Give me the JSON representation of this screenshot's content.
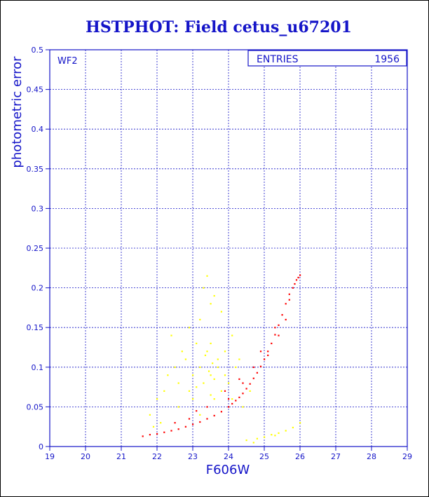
{
  "chart_data": {
    "type": "scatter",
    "title": "HSTPHOT: Field cetus_u67201",
    "xlabel": "F606W",
    "ylabel": "photometric error",
    "xlim": [
      19,
      29
    ],
    "ylim": [
      0,
      0.5
    ],
    "x_ticks": [
      "19",
      "20",
      "21",
      "22",
      "23",
      "24",
      "25",
      "26",
      "27",
      "28",
      "29"
    ],
    "y_ticks": [
      "0",
      "0.05",
      "0.1",
      "0.15",
      "0.2",
      "0.25",
      "0.3",
      "0.35",
      "0.4",
      "0.45",
      "0.5"
    ],
    "grid": true,
    "panel_label": "WF2",
    "stats": {
      "label": "ENTRIES",
      "value": "1956"
    },
    "series": [
      {
        "color": "#ff0000",
        "x": [
          21.6,
          21.8,
          22.0,
          22.2,
          22.4,
          22.6,
          22.8,
          23.0,
          23.2,
          23.4,
          23.6,
          23.8,
          24.0,
          24.1,
          24.2,
          24.3,
          24.4,
          24.5,
          24.6,
          24.7,
          24.8,
          24.9,
          25.0,
          25.1,
          25.2,
          25.3,
          25.4,
          25.5,
          25.6,
          25.7,
          25.8,
          25.85,
          25.9,
          25.95,
          26.0,
          22.5,
          23.1,
          23.9,
          24.3,
          24.7,
          25.1,
          25.4,
          25.6,
          24.0,
          24.4,
          24.9,
          25.3,
          25.7,
          23.4,
          22.9
        ],
        "y": [
          0.013,
          0.015,
          0.016,
          0.018,
          0.02,
          0.022,
          0.025,
          0.028,
          0.031,
          0.035,
          0.039,
          0.044,
          0.05,
          0.054,
          0.058,
          0.062,
          0.067,
          0.073,
          0.079,
          0.086,
          0.093,
          0.101,
          0.11,
          0.12,
          0.13,
          0.141,
          0.153,
          0.166,
          0.18,
          0.192,
          0.2,
          0.205,
          0.21,
          0.213,
          0.216,
          0.03,
          0.045,
          0.07,
          0.085,
          0.1,
          0.115,
          0.14,
          0.16,
          0.06,
          0.08,
          0.12,
          0.15,
          0.185,
          0.05,
          0.035
        ]
      },
      {
        "color": "#ffff00",
        "x": [
          21.8,
          22.0,
          22.2,
          22.3,
          22.5,
          22.6,
          22.7,
          22.8,
          22.9,
          23.0,
          23.1,
          23.2,
          23.3,
          23.35,
          23.4,
          23.45,
          23.5,
          23.55,
          23.6,
          23.7,
          23.8,
          23.9,
          24.0,
          24.1,
          24.2,
          24.4,
          24.6,
          22.4,
          22.9,
          23.2,
          23.5,
          23.8,
          24.1,
          23.3,
          23.6,
          23.0,
          22.6,
          23.9,
          24.3,
          23.4,
          22.1,
          21.9,
          23.1,
          23.5,
          23.7,
          24.5,
          24.8,
          25.0,
          25.2,
          25.4,
          25.6,
          25.8,
          26.0,
          24.7,
          25.3,
          23.5,
          23.6,
          23.2
        ],
        "y": [
          0.04,
          0.06,
          0.07,
          0.09,
          0.1,
          0.08,
          0.12,
          0.11,
          0.07,
          0.09,
          0.13,
          0.1,
          0.08,
          0.115,
          0.12,
          0.095,
          0.09,
          0.105,
          0.085,
          0.1,
          0.07,
          0.09,
          0.08,
          0.06,
          0.1,
          0.05,
          0.07,
          0.14,
          0.15,
          0.16,
          0.18,
          0.17,
          0.14,
          0.2,
          0.19,
          0.06,
          0.05,
          0.12,
          0.11,
          0.215,
          0.03,
          0.025,
          0.075,
          0.065,
          0.11,
          0.008,
          0.01,
          0.012,
          0.015,
          0.017,
          0.02,
          0.024,
          0.03,
          0.005,
          0.014,
          0.13,
          0.06,
          0.04
        ]
      }
    ]
  }
}
